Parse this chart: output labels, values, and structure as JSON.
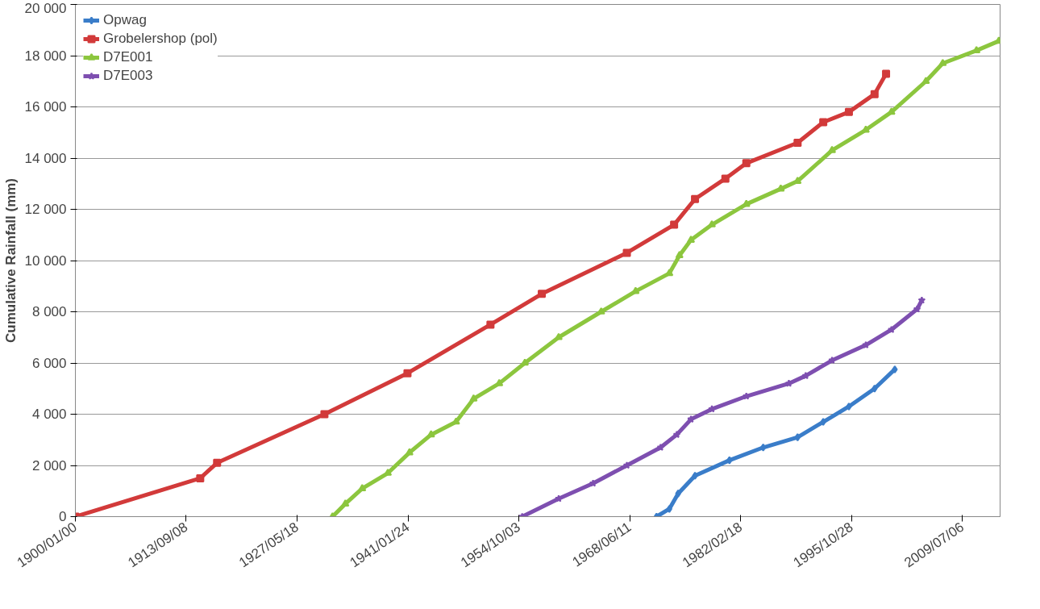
{
  "chart_data": {
    "type": "line",
    "ylabel": "Cumulative Rainfall (mm)",
    "legend": "top left",
    "grid": "y",
    "line_style": "solid",
    "xlim": [
      "1900-01",
      "2014-03"
    ],
    "ylim": [
      0,
      20000
    ],
    "xticks": [
      {
        "value": "1900-01",
        "label": "1900/01/00"
      },
      {
        "value": "1913-09-08",
        "label": "1913/09/08"
      },
      {
        "value": "1927-05-18",
        "label": "1927/05/18"
      },
      {
        "value": "1941-01-24",
        "label": "1941/01/24"
      },
      {
        "value": "1954-10-03",
        "label": "1954/10/03"
      },
      {
        "value": "1968-06-11",
        "label": "1968/06/11"
      },
      {
        "value": "1982-02-18",
        "label": "1982/02/18"
      },
      {
        "value": "1995-10-28",
        "label": "1995/10/28"
      },
      {
        "value": "2009-07-06",
        "label": "2009/07/06"
      }
    ],
    "yticks": [
      0,
      {
        "value": 2000,
        "label": "2 000"
      },
      {
        "value": 4000,
        "label": "4 000"
      },
      {
        "value": 6000,
        "label": "6 000"
      },
      {
        "value": 8000,
        "label": "8 000"
      },
      {
        "value": 10000,
        "label": "10 000"
      },
      {
        "value": 12000,
        "label": "12 000"
      },
      {
        "value": 14000,
        "label": "14 000"
      },
      {
        "value": 16000,
        "label": "16 000"
      },
      {
        "value": 18000,
        "label": "18 000"
      },
      {
        "value": 20000,
        "label": "20 000"
      }
    ],
    "series": [
      {
        "name": "Opwag",
        "color": "#3a7dc9",
        "marker": "diamond",
        "x": [
          "1971-10",
          "1973-05",
          "1974-06",
          "1976-07",
          "1980-10",
          "1984-12",
          "1989-03",
          "1992-05",
          "1995-07",
          "1998-09",
          "2001-03"
        ],
        "values": [
          0,
          300,
          900,
          1600,
          2200,
          2700,
          3100,
          3700,
          4300,
          5000,
          5750
        ]
      },
      {
        "name": "Grobelershop (pol)",
        "color": "#d23a3a",
        "marker": "square",
        "x": [
          "1900-01",
          "1915-06",
          "1917-07",
          "1930-10",
          "1941-01",
          "1951-04",
          "1957-08",
          "1968-02",
          "1973-12",
          "1976-07",
          "1980-04",
          "1982-11",
          "1989-03",
          "1992-05",
          "1995-07",
          "1998-09",
          "2000-02"
        ],
        "values": [
          0,
          1500,
          2100,
          4000,
          5600,
          7500,
          8700,
          10300,
          11400,
          12400,
          13200,
          13800,
          14600,
          15400,
          15800,
          16500,
          17290
        ]
      },
      {
        "name": "D7E001",
        "color": "#8cc63e",
        "marker": "triangle",
        "x": [
          "1931-10",
          "1933-05",
          "1935-06",
          "1938-08",
          "1941-04",
          "1943-12",
          "1947-01",
          "1949-03",
          "1952-05",
          "1955-07",
          "1959-09",
          "1964-12",
          "1969-03",
          "1973-05",
          "1974-08",
          "1976-01",
          "1978-08",
          "1982-11",
          "1987-02",
          "1989-03",
          "1993-06",
          "1997-08",
          "2000-10",
          "2005-01",
          "2007-02",
          "2011-04",
          "2014-01"
        ],
        "values": [
          0,
          500,
          1100,
          1700,
          2500,
          3200,
          3700,
          4600,
          5200,
          6000,
          7000,
          8000,
          8800,
          9500,
          10200,
          10800,
          11400,
          12200,
          12800,
          13100,
          14300,
          15100,
          15800,
          17000,
          17700,
          18200,
          18570
        ]
      },
      {
        "name": "D7E003",
        "color": "#7e4fb0",
        "marker": "star",
        "x": [
          "1955-03",
          "1959-09",
          "1963-12",
          "1968-02",
          "1972-04",
          "1974-04",
          "1976-01",
          "1978-08",
          "1982-11",
          "1988-02",
          "1990-03",
          "1993-06",
          "1997-08",
          "2000-10",
          "2003-12",
          "2004-07"
        ],
        "values": [
          0,
          700,
          1300,
          2000,
          2700,
          3200,
          3800,
          4200,
          4700,
          5200,
          5500,
          6100,
          6700,
          7300,
          8100,
          8450
        ]
      }
    ]
  }
}
